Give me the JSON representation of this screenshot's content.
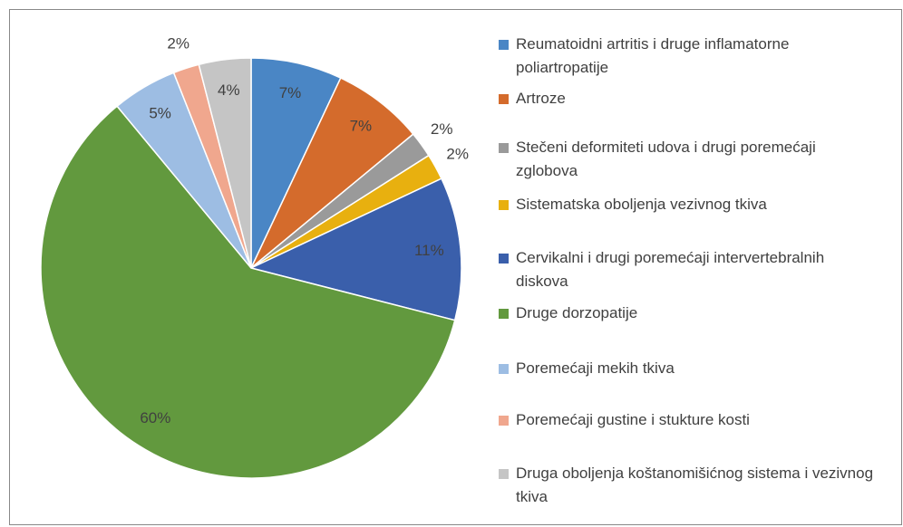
{
  "chart_data": {
    "type": "pie",
    "categories": [
      "Reumatoidni artritis i druge inflamatorne poliartropatije",
      "Artroze",
      "Stečeni deformiteti udova i drugi poremećaji zglobova",
      "Sistematska oboljenja vezivnog tkiva",
      "Cervikalni i drugi poremećaji intervertebralnih diskova",
      "Druge dorzopatije",
      "Poremećaji mekih tkiva",
      "Poremećaji gustine i stukture kosti",
      "Druga oboljenja koštanomišićnog sistema i vezivnog tkiva"
    ],
    "values": [
      7,
      7,
      2,
      2,
      11,
      60,
      5,
      2,
      4
    ],
    "value_labels": [
      "7%",
      "7%",
      "2%",
      "2%",
      "11%",
      "60%",
      "5%",
      "2%",
      "4%"
    ],
    "colors": [
      "#4a86c5",
      "#d46b2c",
      "#9a9a9a",
      "#e8b00f",
      "#3a5fab",
      "#62993e",
      "#9dbde3",
      "#f0a78e",
      "#c5c5c5"
    ],
    "legend": "right"
  }
}
